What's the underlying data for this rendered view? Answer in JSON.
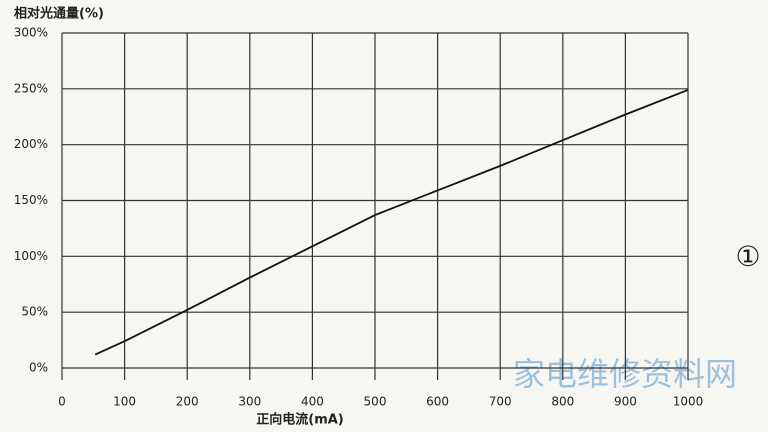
{
  "chart_data": {
    "type": "line",
    "y_axis_label": "相对光通量(%)",
    "x_axis_label": "正向电流(mA)",
    "annotation": "①",
    "watermark": "家电维修资料网",
    "x": [
      53,
      100,
      200,
      300,
      400,
      500,
      600,
      700,
      800,
      900,
      1000
    ],
    "series": [
      {
        "name": null,
        "color": "#111111",
        "values": [
          12,
          24,
          52,
          81,
          109,
          137,
          159,
          181,
          204,
          227,
          249
        ]
      }
    ],
    "xlim": [
      0,
      1000
    ],
    "xticks": [
      0,
      100,
      200,
      300,
      400,
      500,
      600,
      700,
      800,
      900,
      1000
    ],
    "ylim": [
      0,
      300
    ],
    "yticks": [
      {
        "value": 0,
        "label": "0%"
      },
      {
        "value": 50,
        "label": "50%"
      },
      {
        "value": 100,
        "label": "100%"
      },
      {
        "value": 150,
        "label": "150%"
      },
      {
        "value": 200,
        "label": "200%"
      },
      {
        "value": 250,
        "label": "250%"
      },
      {
        "value": 300,
        "label": "300%"
      }
    ],
    "grid": true
  }
}
